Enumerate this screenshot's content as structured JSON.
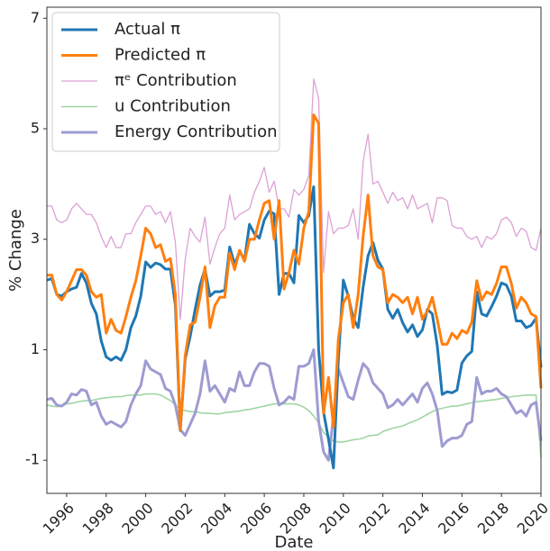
{
  "chart_data": {
    "type": "line",
    "x_label": "Date",
    "y_label": "% Change",
    "xlim": [
      1995,
      2020
    ],
    "ylim": [
      -1.6,
      7.2
    ],
    "xticks": [
      1996,
      1998,
      2000,
      2002,
      2004,
      2006,
      2008,
      2010,
      2012,
      2014,
      2016,
      2018,
      2020
    ],
    "yticks": [
      -1,
      1,
      3,
      5,
      7
    ],
    "legend": "upper left",
    "grid": false,
    "x": [
      1995,
      1995.25,
      1995.5,
      1995.75,
      1996,
      1996.25,
      1996.5,
      1996.75,
      1997,
      1997.25,
      1997.5,
      1997.75,
      1998,
      1998.25,
      1998.5,
      1998.75,
      1999,
      1999.25,
      1999.5,
      1999.75,
      2000,
      2000.25,
      2000.5,
      2000.75,
      2001,
      2001.25,
      2001.5,
      2001.75,
      2002,
      2002.25,
      2002.5,
      2002.75,
      2003,
      2003.25,
      2003.5,
      2003.75,
      2004,
      2004.25,
      2004.5,
      2004.75,
      2005,
      2005.25,
      2005.5,
      2005.75,
      2006,
      2006.25,
      2006.5,
      2006.75,
      2007,
      2007.25,
      2007.5,
      2007.75,
      2008,
      2008.25,
      2008.5,
      2008.75,
      2009,
      2009.25,
      2009.5,
      2009.75,
      2010,
      2010.25,
      2010.5,
      2010.75,
      2011,
      2011.25,
      2011.5,
      2011.75,
      2012,
      2012.25,
      2012.5,
      2012.75,
      2013,
      2013.25,
      2013.5,
      2013.75,
      2014,
      2014.25,
      2014.5,
      2014.75,
      2015,
      2015.25,
      2015.5,
      2015.75,
      2016,
      2016.25,
      2016.5,
      2016.75,
      2017,
      2017.25,
      2017.5,
      2017.75,
      2018,
      2018.25,
      2018.5,
      2018.75,
      2019,
      2019.25,
      2019.5,
      2019.75,
      2020
    ],
    "series": [
      {
        "name": "Actual π",
        "color": "#1f77b4",
        "values": [
          2.26,
          2.29,
          2.0,
          1.97,
          2.05,
          2.1,
          2.13,
          2.38,
          2.21,
          1.84,
          1.65,
          1.16,
          0.87,
          0.81,
          0.87,
          0.81,
          1.0,
          1.4,
          1.61,
          1.97,
          2.59,
          2.49,
          2.57,
          2.54,
          2.46,
          2.46,
          1.81,
          -0.46,
          0.84,
          1.24,
          1.73,
          2.17,
          2.46,
          1.97,
          2.05,
          2.05,
          2.08,
          2.86,
          2.54,
          2.78,
          2.62,
          3.27,
          3.1,
          3.02,
          3.35,
          3.51,
          3.46,
          2.0,
          2.38,
          2.38,
          2.21,
          3.43,
          3.3,
          3.43,
          3.95,
          1.0,
          -0.13,
          -0.62,
          -1.14,
          0.84,
          2.26,
          1.97,
          1.57,
          1.4,
          2.13,
          2.7,
          2.94,
          2.62,
          2.46,
          1.73,
          1.57,
          1.73,
          1.49,
          1.32,
          1.45,
          1.24,
          1.36,
          1.73,
          1.65,
          1.08,
          0.19,
          0.24,
          0.22,
          0.27,
          0.76,
          0.89,
          0.97,
          2.05,
          1.65,
          1.61,
          1.78,
          1.97,
          2.21,
          2.17,
          1.97,
          1.52,
          1.52,
          1.4,
          1.44,
          1.57,
          0.68
        ]
      },
      {
        "name": "Predicted π",
        "color": "#ff7f0e",
        "values": [
          2.35,
          2.35,
          2.0,
          1.9,
          2.05,
          2.25,
          2.45,
          2.45,
          2.35,
          2.05,
          1.95,
          2.0,
          1.3,
          1.55,
          1.35,
          1.3,
          1.6,
          1.95,
          2.25,
          2.7,
          3.2,
          3.1,
          2.85,
          2.9,
          2.6,
          2.65,
          2.0,
          -0.45,
          0.9,
          1.45,
          1.5,
          1.95,
          2.5,
          1.4,
          1.8,
          1.95,
          1.95,
          2.75,
          2.45,
          2.8,
          2.6,
          3.0,
          3.0,
          3.35,
          3.65,
          3.7,
          3.0,
          3.7,
          2.1,
          2.4,
          2.8,
          2.55,
          3.2,
          3.5,
          5.25,
          5.1,
          -0.15,
          0.5,
          -0.4,
          1.2,
          1.85,
          2.0,
          1.4,
          2.0,
          3.05,
          3.8,
          2.7,
          2.5,
          2.45,
          1.85,
          2.0,
          1.95,
          1.85,
          1.95,
          1.65,
          1.95,
          1.55,
          1.7,
          1.95,
          1.55,
          1.1,
          1.1,
          1.3,
          1.2,
          1.35,
          1.3,
          1.5,
          2.25,
          1.9,
          2.05,
          2.0,
          2.2,
          2.5,
          2.5,
          2.2,
          1.75,
          1.95,
          1.85,
          1.65,
          1.6,
          0.3
        ]
      },
      {
        "name": "πᵉ Contribution",
        "color": "#dca2d6",
        "values": [
          3.6,
          3.6,
          3.35,
          3.3,
          3.35,
          3.55,
          3.65,
          3.55,
          3.45,
          3.45,
          3.3,
          3.05,
          2.85,
          3.05,
          2.85,
          2.85,
          3.1,
          3.1,
          3.3,
          3.45,
          3.6,
          3.6,
          3.45,
          3.5,
          3.3,
          3.5,
          2.95,
          1.55,
          2.65,
          3.2,
          3.05,
          2.95,
          3.4,
          2.55,
          2.85,
          3.1,
          3.2,
          3.8,
          3.35,
          3.45,
          3.5,
          3.55,
          3.85,
          4.05,
          4.3,
          3.85,
          4.05,
          3.55,
          3.55,
          3.4,
          3.9,
          3.8,
          3.9,
          4.15,
          5.9,
          5.55,
          2.4,
          3.5,
          3.1,
          3.2,
          3.2,
          3.25,
          3.55,
          3.0,
          4.4,
          4.9,
          4.0,
          4.05,
          3.85,
          3.65,
          3.85,
          3.7,
          3.75,
          3.55,
          3.8,
          3.55,
          3.6,
          3.65,
          3.3,
          3.75,
          3.75,
          3.7,
          3.25,
          3.2,
          3.2,
          3.05,
          3.0,
          3.05,
          2.85,
          3.05,
          3.0,
          3.1,
          3.35,
          3.4,
          3.3,
          3.05,
          3.2,
          3.15,
          2.85,
          2.8,
          3.2
        ]
      },
      {
        "name": "u Contribution",
        "color": "#9fd6a4",
        "values": [
          0.0,
          -0.02,
          -0.03,
          -0.02,
          0.02,
          0.03,
          0.05,
          0.07,
          0.08,
          0.08,
          0.1,
          0.12,
          0.13,
          0.14,
          0.15,
          0.15,
          0.17,
          0.18,
          0.18,
          0.18,
          0.2,
          0.2,
          0.2,
          0.18,
          0.13,
          0.08,
          0.0,
          -0.08,
          -0.1,
          -0.12,
          -0.12,
          -0.14,
          -0.15,
          -0.15,
          -0.16,
          -0.16,
          -0.14,
          -0.13,
          -0.12,
          -0.11,
          -0.09,
          -0.08,
          -0.06,
          -0.04,
          -0.02,
          0.0,
          0.02,
          0.02,
          0.02,
          0.02,
          0.02,
          0.0,
          -0.04,
          -0.1,
          -0.2,
          -0.32,
          -0.5,
          -0.58,
          -0.65,
          -0.67,
          -0.67,
          -0.65,
          -0.63,
          -0.62,
          -0.6,
          -0.56,
          -0.55,
          -0.54,
          -0.48,
          -0.45,
          -0.42,
          -0.4,
          -0.38,
          -0.34,
          -0.3,
          -0.27,
          -0.22,
          -0.17,
          -0.12,
          -0.08,
          -0.06,
          -0.04,
          -0.02,
          -0.02,
          0.0,
          0.02,
          0.04,
          0.06,
          0.07,
          0.08,
          0.09,
          0.1,
          0.12,
          0.13,
          0.15,
          0.16,
          0.17,
          0.18,
          0.18,
          0.18,
          -0.95
        ]
      },
      {
        "name": "Energy Contribution",
        "color": "#9e9bd2",
        "values": [
          0.1,
          0.12,
          0.0,
          -0.02,
          0.05,
          0.2,
          0.18,
          0.28,
          0.25,
          0.0,
          0.05,
          -0.2,
          -0.35,
          -0.3,
          -0.35,
          -0.4,
          -0.3,
          0.0,
          0.2,
          0.35,
          0.8,
          0.65,
          0.6,
          0.55,
          0.3,
          0.25,
          0.0,
          -0.45,
          -0.55,
          -0.35,
          -0.15,
          0.2,
          0.8,
          0.25,
          0.35,
          0.2,
          0.05,
          0.3,
          0.25,
          0.6,
          0.35,
          0.35,
          0.6,
          0.75,
          0.75,
          0.7,
          0.3,
          0.0,
          0.05,
          0.15,
          0.1,
          0.7,
          0.7,
          0.75,
          1.0,
          -0.3,
          -0.85,
          -1.0,
          -0.2,
          0.65,
          0.4,
          0.15,
          0.1,
          0.45,
          0.75,
          0.65,
          0.4,
          0.3,
          0.2,
          -0.05,
          0.0,
          0.1,
          0.0,
          0.1,
          0.2,
          0.05,
          0.3,
          0.4,
          0.2,
          -0.1,
          -0.75,
          -0.65,
          -0.6,
          -0.6,
          -0.55,
          -0.35,
          -0.3,
          0.5,
          0.2,
          0.25,
          0.25,
          0.3,
          0.2,
          0.15,
          0.0,
          -0.15,
          -0.1,
          -0.2,
          0.0,
          0.05,
          -0.65
        ]
      }
    ]
  }
}
